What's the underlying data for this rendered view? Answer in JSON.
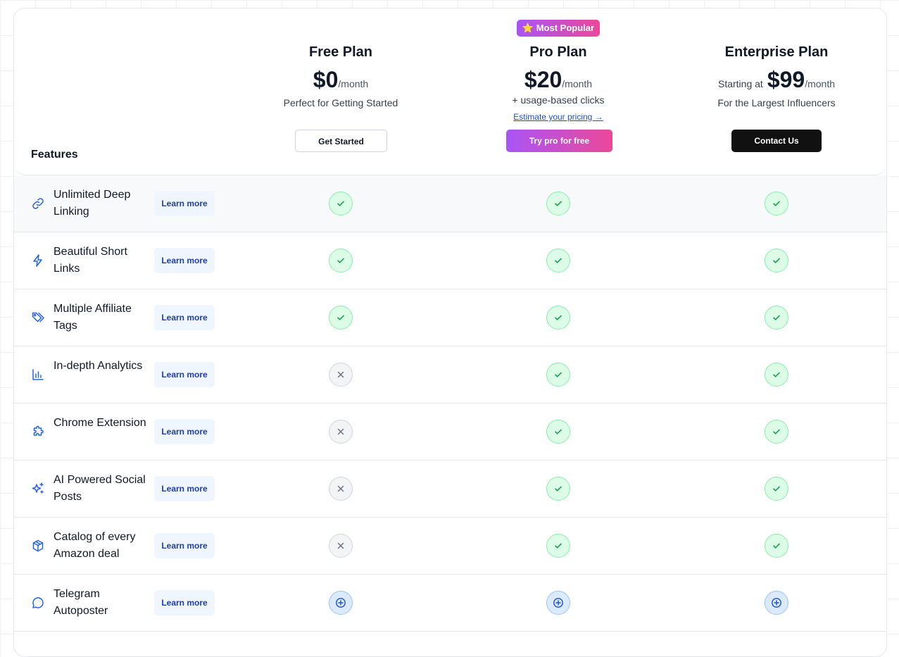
{
  "header": {
    "features_title": "Features"
  },
  "plans": {
    "free": {
      "name": "Free Plan",
      "amount": "$0",
      "period": "/month",
      "subtitle": "Perfect for Getting Started",
      "button": "Get Started"
    },
    "pro": {
      "badge": "⭐ Most Popular",
      "name": "Pro Plan",
      "amount": "$20",
      "period": "/month",
      "subtitle": "+ usage-based clicks",
      "link": "Estimate your pricing →",
      "button": "Try pro for free"
    },
    "enterprise": {
      "name": "Enterprise Plan",
      "prefix": "Starting at",
      "amount": "$99",
      "period": "/month",
      "subtitle": "For the Largest Influencers",
      "button": "Contact Us"
    }
  },
  "learn_more_label": "Learn more",
  "status_legend": {
    "yes": "check-icon",
    "no": "x-icon",
    "addon": "plus-circle-icon"
  },
  "colors": {
    "accent_start": "#a855f7",
    "accent_end": "#ec4899",
    "check": "#16a34a",
    "feature_icon": "#2563eb"
  },
  "features": [
    {
      "label": "Unlimited Deep Linking",
      "icon": "link-icon",
      "free": "yes",
      "pro": "yes",
      "enterprise": "yes"
    },
    {
      "label": "Beautiful Short Links",
      "icon": "lightning-icon",
      "free": "yes",
      "pro": "yes",
      "enterprise": "yes"
    },
    {
      "label": "Multiple Affiliate Tags",
      "icon": "tags-icon",
      "free": "yes",
      "pro": "yes",
      "enterprise": "yes"
    },
    {
      "label": "In-depth Analytics",
      "icon": "bar-chart-icon",
      "free": "no",
      "pro": "yes",
      "enterprise": "yes"
    },
    {
      "label": "Chrome Extension",
      "icon": "puzzle-icon",
      "free": "no",
      "pro": "yes",
      "enterprise": "yes"
    },
    {
      "label": "AI Powered Social Posts",
      "icon": "sparkles-icon",
      "free": "no",
      "pro": "yes",
      "enterprise": "yes"
    },
    {
      "label": "Catalog of every Amazon deal",
      "icon": "package-icon",
      "free": "no",
      "pro": "yes",
      "enterprise": "yes"
    },
    {
      "label": "Telegram Autoposter",
      "icon": "chat-bubble-icon",
      "free": "plus",
      "pro": "plus",
      "enterprise": "plus"
    }
  ]
}
